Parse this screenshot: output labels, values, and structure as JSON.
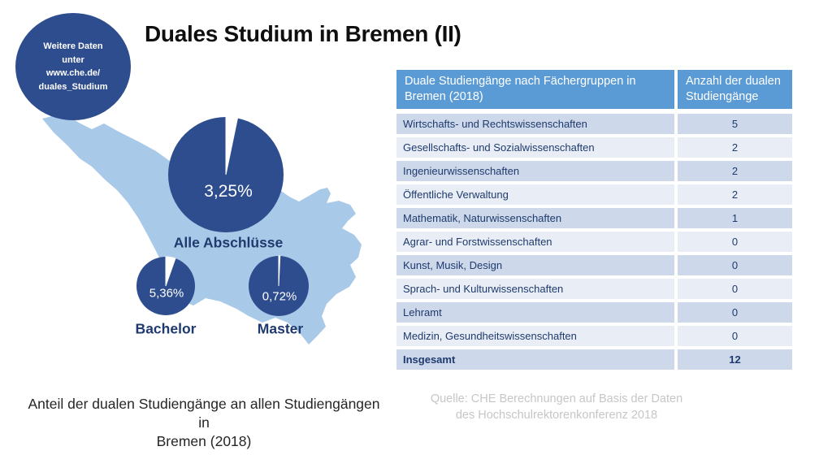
{
  "slide": {
    "title": "Duales Studium in Bremen (II)",
    "badge_text": "Weitere Daten\nunter\nwww.che.de/\nduales_Studium",
    "caption": "Anteil der dualen Studiengänge an allen Studiengängen in\nBremen (2018)",
    "source_note": "Quelle: CHE Berechnungen auf Basis der Daten\ndes Hochschulrektorenkonferenz 2018"
  },
  "colors": {
    "pie_dark_blue": "#2e4d8e",
    "map_light_blue": "#a9c9e9",
    "table_header_blue": "#5b9bd5",
    "table_row_dark": "#cdd9ea",
    "table_row_light": "#e9eef6",
    "table_text_navy": "#1f3a6e",
    "source_gray": "#c6c6c6"
  },
  "chart_data": [
    {
      "type": "pie",
      "title": "Anteil der dualen Studiengänge an allen Studiengängen in Bremen (2018)",
      "unit": "percent (white slice = share of dual study programmes, dark = remainder)",
      "series": [
        {
          "name": "Alle Abschlüsse",
          "value": 3.25,
          "label": "3,25%"
        },
        {
          "name": "Bachelor",
          "value": 5.36,
          "label": "5,36%"
        },
        {
          "name": "Master",
          "value": 0.72,
          "label": "0,72%"
        }
      ]
    },
    {
      "type": "table",
      "columns": [
        "Duale Studiengänge nach Fächergruppen in Bremen (2018)",
        "Anzahl der dualen Studiengänge"
      ],
      "rows": [
        [
          "Wirtschafts- und Rechtswissenschaften",
          "5"
        ],
        [
          "Gesellschafts- und Sozialwissenschaften",
          "2"
        ],
        [
          "Ingenieurwissenschaften",
          "2"
        ],
        [
          "Öffentliche Verwaltung",
          "2"
        ],
        [
          "Mathematik, Naturwissenschaften",
          "1"
        ],
        [
          "Agrar- und Forstwissenschaften",
          "0"
        ],
        [
          "Kunst, Musik, Design",
          "0"
        ],
        [
          "Sprach- und Kulturwissenschaften",
          "0"
        ],
        [
          "Lehramt",
          "0"
        ],
        [
          "Medizin, Gesundheitswissenschaften",
          "0"
        ],
        [
          "Insgesamt",
          "12"
        ]
      ]
    }
  ]
}
